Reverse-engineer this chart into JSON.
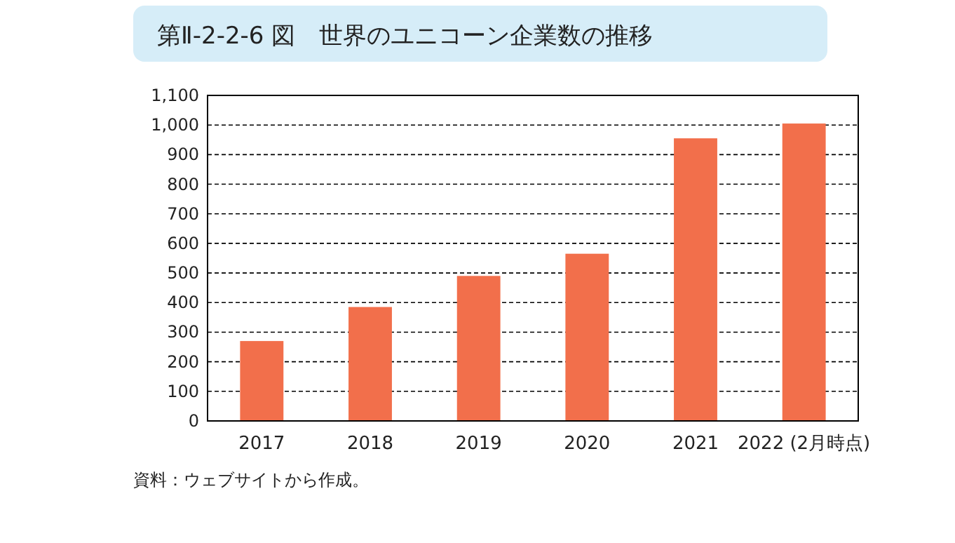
{
  "chart_data": {
    "type": "bar",
    "title": "第Ⅱ-2-2-6 図　世界のユニコーン企業数の推移",
    "categories": [
      "2017",
      "2018",
      "2019",
      "2020",
      "2021",
      "2022 (2月時点)"
    ],
    "values": [
      270,
      385,
      490,
      565,
      955,
      1005
    ],
    "color": "#f26f4b",
    "ylim": [
      0,
      1100
    ],
    "yticks": [
      0,
      100,
      200,
      300,
      400,
      500,
      600,
      700,
      800,
      900,
      {
        "value": 1000,
        "label": "1,000"
      },
      {
        "value": 1100,
        "label": "1,100"
      }
    ],
    "grid": "y",
    "annotations": [
      "資料：ウェブサイトから作成。"
    ]
  }
}
